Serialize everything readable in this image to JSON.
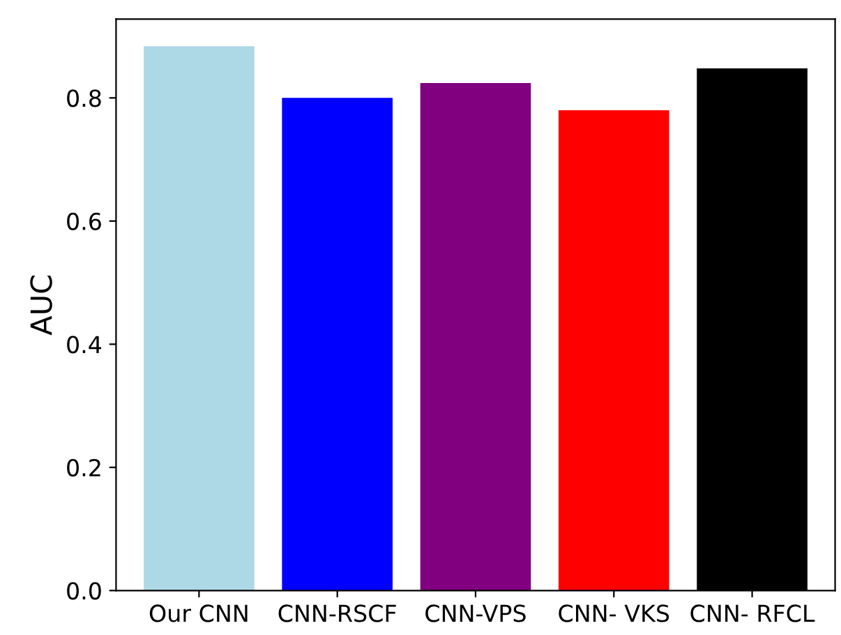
{
  "chart_data": {
    "type": "bar",
    "ylabel": "AUC",
    "categories": [
      "Our CNN",
      "CNN-RSCF",
      "CNN-VPS",
      "CNN- VKS",
      "CNN- RFCL"
    ],
    "values": [
      0.884,
      0.8,
      0.824,
      0.78,
      0.848
    ],
    "colors": [
      "#add8e6",
      "#0000ff",
      "#800080",
      "#ff0000",
      "#000000"
    ],
    "ylim": [
      0,
      0.928
    ],
    "yticks": [
      {
        "value": 0,
        "label": "0.0"
      },
      0.2,
      0.4,
      0.6,
      0.8
    ],
    "grid": false
  }
}
